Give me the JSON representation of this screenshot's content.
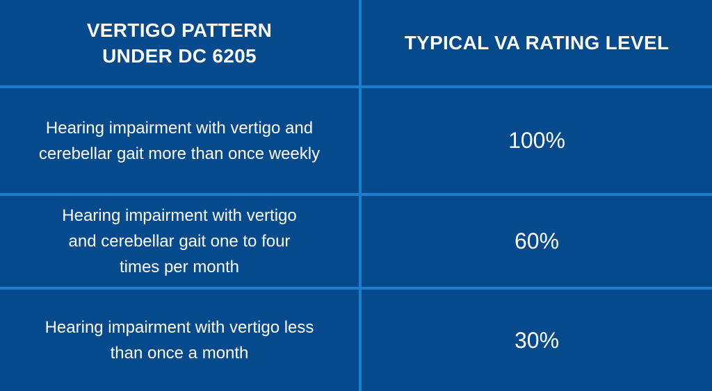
{
  "header": {
    "col1_line1": "VERTIGO PATTERN",
    "col1_line2": "UNDER DC 6205",
    "col2": "TYPICAL VA RATING LEVEL"
  },
  "rows": [
    {
      "pattern_lines": [
        "Hearing impairment with vertigo and",
        "cerebellar gait more than once weekly"
      ],
      "rating": "100%"
    },
    {
      "pattern_lines": [
        "Hearing impairment with vertigo",
        "and cerebellar gait one to four",
        "times per month"
      ],
      "rating": "60%"
    },
    {
      "pattern_lines": [
        "Hearing impairment with vertigo less",
        "than once a month"
      ],
      "rating": "30%"
    }
  ],
  "colors": {
    "background": "#054a8d",
    "grid": "#1b7dcc",
    "text": "#ffffff"
  }
}
